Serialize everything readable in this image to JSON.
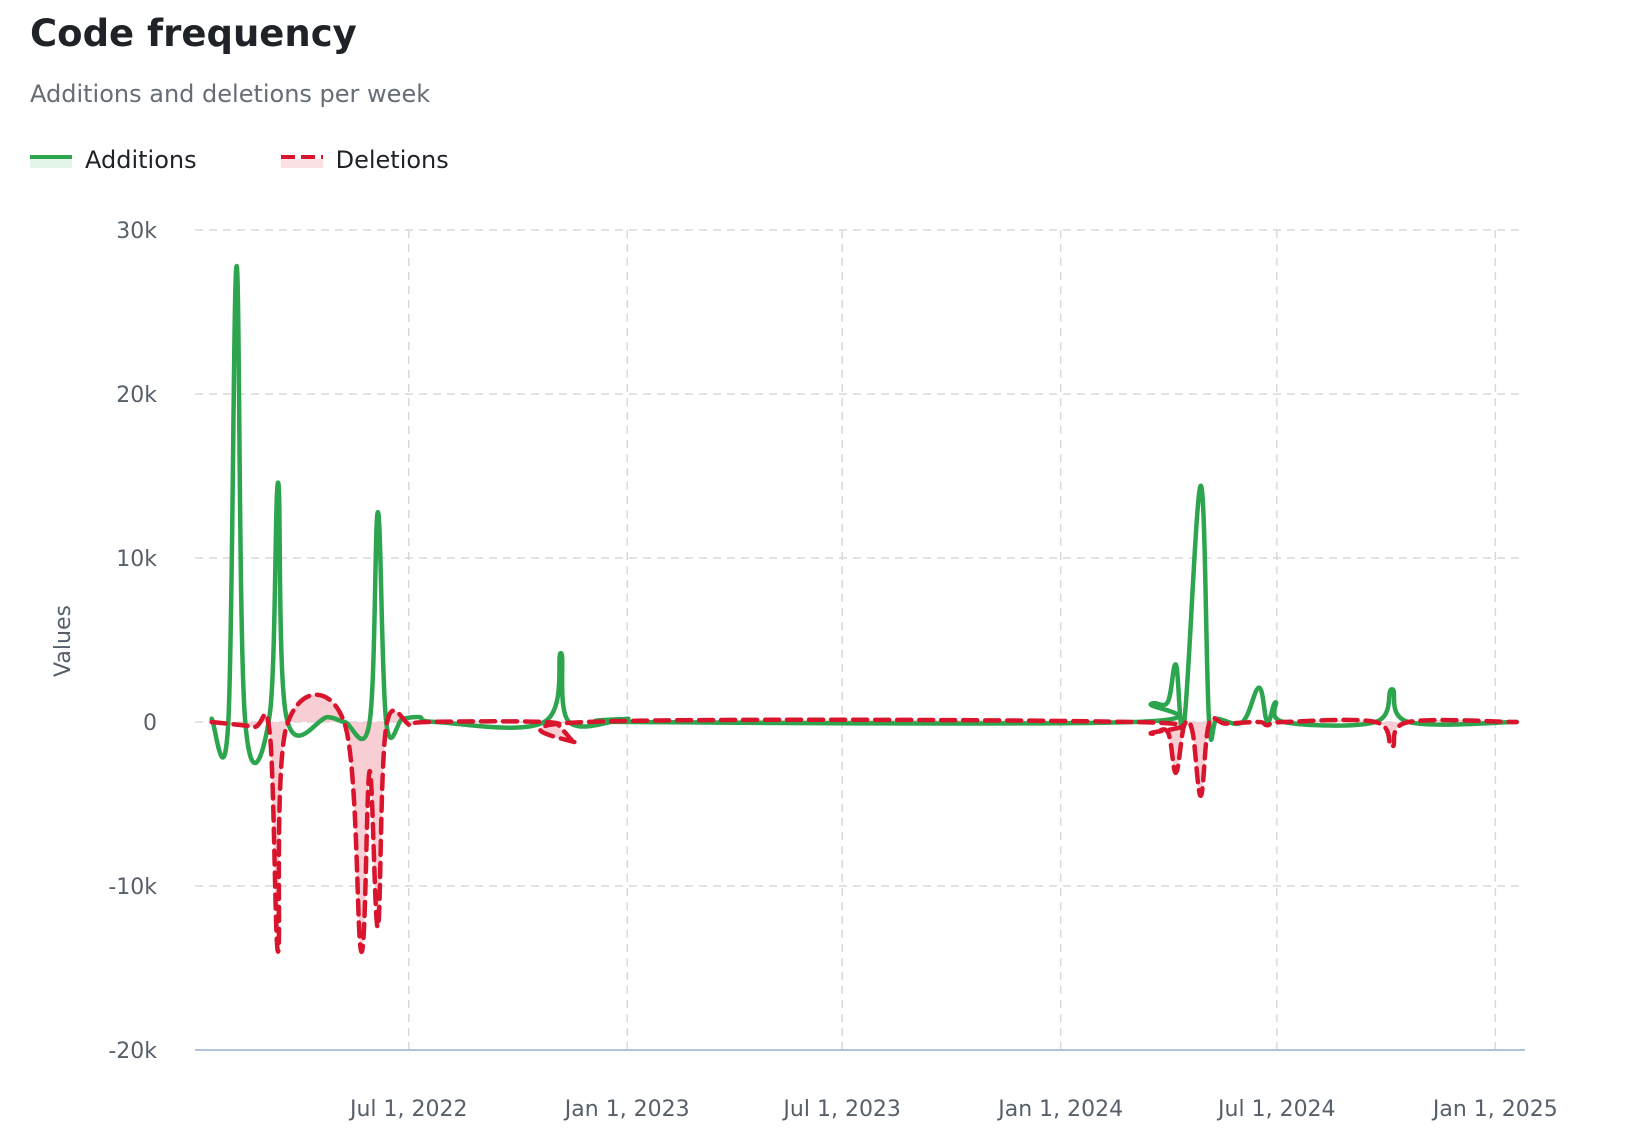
{
  "header": {
    "title": "Code frequency",
    "subtitle": "Additions and deletions per week"
  },
  "colors": {
    "additions": "#2da44e",
    "deletions": "#d9152d",
    "deletions_fill": "#f7c6ce",
    "grid": "#d9d9d9",
    "axis": "#afc4d8"
  },
  "chart_data": {
    "type": "line",
    "title": "Code frequency",
    "subtitle": "Additions and deletions per week",
    "xlabel": "",
    "ylabel": "Values",
    "ylim": [
      -20000,
      30000
    ],
    "yticks": [
      30000,
      20000,
      10000,
      0,
      -10000,
      -20000
    ],
    "ytick_labels": [
      "30k",
      "20k",
      "10k",
      "0",
      "-10k",
      "-20k"
    ],
    "xlim": [
      "2022-01-02",
      "2025-01-26"
    ],
    "xticks": [
      "2022-07-01",
      "2023-01-01",
      "2023-07-01",
      "2024-01-01",
      "2024-07-01",
      "2025-01-01"
    ],
    "xtick_labels": [
      "Jul 1, 2022",
      "Jan 1, 2023",
      "Jul 1, 2023",
      "Jan 1, 2024",
      "Jul 1, 2024",
      "Jan 1, 2025"
    ],
    "grid": true,
    "legend": "top-left",
    "series": [
      {
        "name": "Additions",
        "style": "solid",
        "points": [
          [
            "2022-01-16",
            200
          ],
          [
            "2022-01-30",
            0
          ],
          [
            "2022-02-06",
            27800
          ],
          [
            "2022-02-13",
            300
          ],
          [
            "2022-03-06",
            500
          ],
          [
            "2022-03-13",
            14600
          ],
          [
            "2022-03-20",
            300
          ],
          [
            "2022-04-24",
            300
          ],
          [
            "2022-05-08",
            0
          ],
          [
            "2022-05-29",
            0
          ],
          [
            "2022-06-05",
            12800
          ],
          [
            "2022-06-12",
            0
          ],
          [
            "2022-06-26",
            200
          ],
          [
            "2022-07-10",
            300
          ],
          [
            "2022-07-24",
            0
          ],
          [
            "2022-10-23",
            0
          ],
          [
            "2022-11-06",
            4200
          ],
          [
            "2022-11-13",
            0
          ],
          [
            "2023-01-01",
            200
          ],
          [
            "2023-01-08",
            0
          ],
          [
            "2024-03-03",
            0
          ],
          [
            "2024-03-17",
            1100
          ],
          [
            "2024-03-31",
            1200
          ],
          [
            "2024-04-07",
            3500
          ],
          [
            "2024-04-14",
            0
          ],
          [
            "2024-04-28",
            14400
          ],
          [
            "2024-05-05",
            0
          ],
          [
            "2024-05-12",
            200
          ],
          [
            "2024-06-02",
            0
          ],
          [
            "2024-06-16",
            2100
          ],
          [
            "2024-06-23",
            0
          ],
          [
            "2024-06-30",
            1200
          ],
          [
            "2024-07-07",
            0
          ],
          [
            "2024-09-22",
            0
          ],
          [
            "2024-10-06",
            2000
          ],
          [
            "2024-10-20",
            0
          ],
          [
            "2025-01-19",
            0
          ]
        ]
      },
      {
        "name": "Deletions",
        "style": "dashed",
        "points": [
          [
            "2022-01-16",
            0
          ],
          [
            "2022-02-20",
            -300
          ],
          [
            "2022-03-06",
            -700
          ],
          [
            "2022-03-13",
            -14000
          ],
          [
            "2022-03-20",
            -300
          ],
          [
            "2022-05-08",
            -100
          ],
          [
            "2022-05-22",
            -14000
          ],
          [
            "2022-05-29",
            -3000
          ],
          [
            "2022-06-05",
            -12500
          ],
          [
            "2022-06-12",
            -300
          ],
          [
            "2022-07-03",
            -200
          ],
          [
            "2022-07-17",
            0
          ],
          [
            "2022-10-23",
            0
          ],
          [
            "2022-11-06",
            -400
          ],
          [
            "2022-11-20",
            -1300
          ],
          [
            "2022-11-27",
            0
          ],
          [
            "2024-03-03",
            0
          ],
          [
            "2024-03-17",
            -700
          ],
          [
            "2024-03-31",
            -600
          ],
          [
            "2024-04-07",
            -3100
          ],
          [
            "2024-04-14",
            -200
          ],
          [
            "2024-04-21",
            -600
          ],
          [
            "2024-04-28",
            -4500
          ],
          [
            "2024-05-05",
            -100
          ],
          [
            "2024-05-19",
            -100
          ],
          [
            "2024-06-16",
            0
          ],
          [
            "2024-06-23",
            -200
          ],
          [
            "2024-07-07",
            0
          ],
          [
            "2024-09-22",
            0
          ],
          [
            "2024-10-06",
            -1500
          ],
          [
            "2024-10-20",
            0
          ],
          [
            "2025-01-19",
            0
          ]
        ]
      }
    ]
  }
}
